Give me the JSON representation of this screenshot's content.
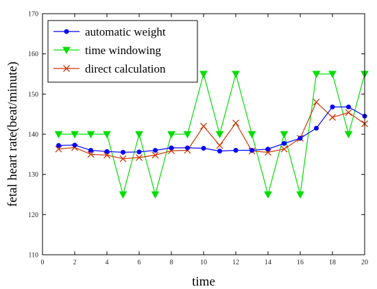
{
  "chart_data": {
    "type": "line",
    "xlabel": "time",
    "ylabel": "fetal heart rate(beat/minute)",
    "xlim": [
      0,
      20
    ],
    "ylim": [
      110,
      170
    ],
    "xticks": [
      0,
      2,
      4,
      6,
      8,
      10,
      12,
      14,
      16,
      18,
      20
    ],
    "yticks": [
      110,
      120,
      130,
      140,
      150,
      160,
      170
    ],
    "x": [
      1,
      2,
      3,
      4,
      5,
      6,
      7,
      8,
      9,
      10,
      11,
      12,
      13,
      14,
      15,
      16,
      17,
      18,
      19,
      20
    ],
    "legend_position": "top-left",
    "series": [
      {
        "name": "automatic weight",
        "color": "#0000ff",
        "marker": "circle",
        "values": [
          137.2,
          137.3,
          136.0,
          135.7,
          135.5,
          135.6,
          136.0,
          136.6,
          136.6,
          136.5,
          135.8,
          136.0,
          136.0,
          136.3,
          137.7,
          139.0,
          141.5,
          146.8,
          146.8,
          144.5
        ]
      },
      {
        "name": "time windowing",
        "color": "#00dd00",
        "marker": "triangle-down",
        "values": [
          140,
          140,
          140,
          140,
          125,
          140,
          125,
          140,
          140,
          155,
          140,
          155,
          140,
          125,
          140,
          125,
          155,
          155,
          140,
          155
        ]
      },
      {
        "name": "direct calculation",
        "color": "#cc3300",
        "marker": "x",
        "values": [
          136.3,
          136.7,
          135.0,
          134.8,
          133.9,
          134.2,
          134.8,
          135.9,
          136.0,
          142.0,
          137.2,
          142.8,
          135.8,
          135.5,
          136.3,
          139.0,
          148.0,
          144.2,
          145.4,
          142.6
        ]
      }
    ]
  }
}
